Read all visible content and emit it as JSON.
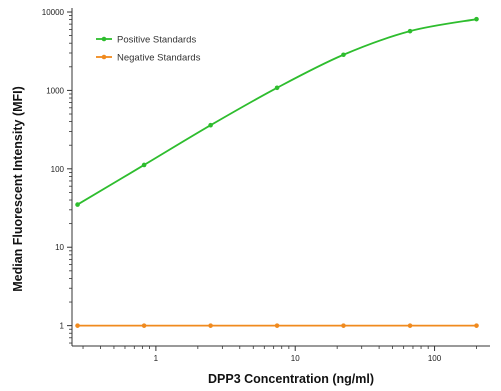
{
  "chart_data": {
    "type": "line",
    "title": "",
    "xlabel": "DPP3 Concentration (ng/ml)",
    "ylabel": "Median Fluorescent Intensity (MFI)",
    "xscale": "log",
    "yscale": "log",
    "xlim": [
      0.25,
      250
    ],
    "ylim": [
      0.55,
      10000
    ],
    "x_ticks": [
      1,
      10,
      100
    ],
    "x_tick_labels": [
      "1",
      "10",
      "100"
    ],
    "y_ticks": [
      1,
      10,
      100,
      1000,
      10000
    ],
    "y_tick_labels": [
      "1",
      "10",
      "100",
      "1000",
      "10000"
    ],
    "grid": false,
    "legend_position": "top-left",
    "series": [
      {
        "name": "Positive Standards",
        "color": "#2ebd2e",
        "x": [
          0.274,
          0.823,
          2.47,
          7.41,
          22.2,
          66.7,
          200
        ],
        "y": [
          35,
          112,
          360,
          1080,
          2850,
          5700,
          8100
        ]
      },
      {
        "name": "Negative Standards",
        "color": "#f08a1e",
        "x": [
          0.274,
          0.823,
          2.47,
          7.41,
          22.2,
          66.7,
          200
        ],
        "y": [
          1,
          1,
          1,
          1,
          1,
          1,
          1
        ]
      }
    ]
  }
}
